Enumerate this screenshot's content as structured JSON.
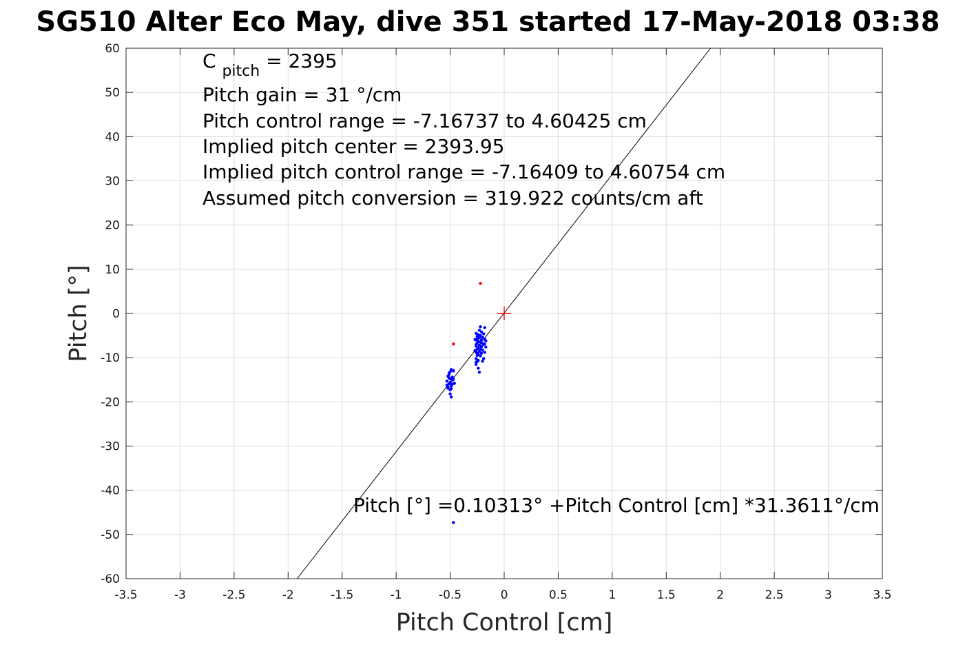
{
  "chart_data": {
    "type": "scatter",
    "title": "SG510 Alter Eco May, dive 351 started 17-May-2018 03:38",
    "xlabel": "Pitch Control [cm]",
    "ylabel": "Pitch [°]",
    "xlim": [
      -3.5,
      3.5
    ],
    "ylim": [
      -60,
      60
    ],
    "xticks": [
      -3.5,
      -3,
      -2.5,
      -2,
      -1.5,
      -1,
      -0.5,
      0,
      0.5,
      1,
      1.5,
      2,
      2.5,
      3,
      3.5
    ],
    "xtick_labels": [
      "-3.5",
      "-3",
      "-2.5",
      "-2",
      "-1.5",
      "-1",
      "-0.5",
      "0",
      "0.5",
      "1",
      "1.5",
      "2",
      "2.5",
      "3",
      "3.5"
    ],
    "yticks": [
      -60,
      -50,
      -40,
      -30,
      -20,
      -10,
      0,
      10,
      20,
      30,
      40,
      50,
      60
    ],
    "ytick_labels": [
      "-60",
      "-50",
      "-40",
      "-30",
      "-20",
      "-10",
      "0",
      "10",
      "20",
      "30",
      "40",
      "50",
      "60"
    ],
    "grid": true,
    "info_lines": {
      "c_pitch_symbol": "C",
      "c_pitch_subscript": "pitch",
      "c_pitch_value": " = 2395",
      "line2": "Pitch gain = 31 °/cm",
      "line3": "Pitch control range = -7.16737 to 4.60425 cm",
      "line4": "Implied pitch center = 2393.95",
      "line5": "Implied pitch control range = -7.16409 to 4.60754 cm",
      "line6": "Assumed pitch conversion = 319.922 counts/cm aft"
    },
    "fit_annotation": "Pitch [°] =0.10313° +Pitch Control [cm] *31.3611°/cm",
    "fit_line": {
      "intercept": 0.10313,
      "slope": 31.3611,
      "color": "#000000"
    },
    "center_marker": {
      "x": 0,
      "y": 0,
      "color": "#ff0000"
    },
    "series": [
      {
        "color": "#0000ff",
        "points": [
          [
            -0.51,
            -13.5
          ],
          [
            -0.52,
            -14.2
          ],
          [
            -0.5,
            -14.8
          ],
          [
            -0.53,
            -15.3
          ],
          [
            -0.51,
            -15.9
          ],
          [
            -0.49,
            -16.4
          ],
          [
            -0.52,
            -16.9
          ],
          [
            -0.5,
            -17.3
          ],
          [
            -0.48,
            -15.1
          ],
          [
            -0.47,
            -13.0
          ],
          [
            -0.49,
            -12.7
          ],
          [
            -0.53,
            -16.2
          ],
          [
            -0.5,
            -18.2
          ],
          [
            -0.49,
            -18.9
          ],
          [
            -0.46,
            -15.8
          ],
          [
            -0.48,
            -14.4
          ],
          [
            -0.51,
            -13.8
          ],
          [
            -0.47,
            -14.9
          ],
          [
            -0.5,
            -15.6
          ],
          [
            -0.52,
            -16.6
          ],
          [
            -0.48,
            -16.0
          ],
          [
            -0.49,
            -17.0
          ],
          [
            -0.51,
            -14.6
          ],
          [
            -0.5,
            -13.2
          ],
          [
            -0.47,
            -12.9
          ],
          [
            -0.26,
            -4.5
          ],
          [
            -0.25,
            -5.2
          ],
          [
            -0.26,
            -6.0
          ],
          [
            -0.25,
            -6.7
          ],
          [
            -0.26,
            -7.4
          ],
          [
            -0.25,
            -8.1
          ],
          [
            -0.26,
            -8.8
          ],
          [
            -0.25,
            -9.5
          ],
          [
            -0.26,
            -10.2
          ],
          [
            -0.25,
            -10.9
          ],
          [
            -0.26,
            -11.5
          ],
          [
            -0.25,
            -5.8
          ],
          [
            -0.26,
            -7.0
          ],
          [
            -0.25,
            -9.0
          ],
          [
            -0.26,
            -11.0
          ],
          [
            -0.24,
            -4.8
          ],
          [
            -0.24,
            -6.3
          ],
          [
            -0.24,
            -7.8
          ],
          [
            -0.24,
            -9.3
          ],
          [
            -0.24,
            -10.6
          ],
          [
            -0.23,
            -3.8
          ],
          [
            -0.23,
            -5.5
          ],
          [
            -0.23,
            -7.2
          ],
          [
            -0.23,
            -8.6
          ],
          [
            -0.23,
            -13.3
          ],
          [
            -0.22,
            -3.0
          ],
          [
            -0.22,
            -5.0
          ],
          [
            -0.22,
            -6.5
          ],
          [
            -0.22,
            -8.0
          ],
          [
            -0.22,
            -9.6
          ],
          [
            -0.21,
            -4.2
          ],
          [
            -0.21,
            -6.0
          ],
          [
            -0.21,
            -7.5
          ],
          [
            -0.21,
            -9.0
          ],
          [
            -0.2,
            -5.4
          ],
          [
            -0.2,
            -6.8
          ],
          [
            -0.2,
            -8.3
          ],
          [
            -0.19,
            -10.2
          ],
          [
            -0.19,
            -4.6
          ],
          [
            -0.19,
            -7.0
          ],
          [
            -0.18,
            -3.2
          ],
          [
            -0.18,
            -5.8
          ],
          [
            -0.18,
            -8.8
          ],
          [
            -0.17,
            -6.2
          ],
          [
            -0.17,
            -7.6
          ],
          [
            -0.27,
            -5.9
          ],
          [
            -0.27,
            -8.4
          ],
          [
            -0.24,
            -12.4
          ],
          [
            -0.2,
            -10.8
          ],
          [
            -0.18,
            -6.9
          ],
          [
            -0.47,
            -47.3
          ]
        ]
      },
      {
        "color": "#ff0000",
        "points": [
          [
            -0.22,
            6.8
          ],
          [
            -0.47,
            -6.9
          ]
        ]
      }
    ]
  }
}
